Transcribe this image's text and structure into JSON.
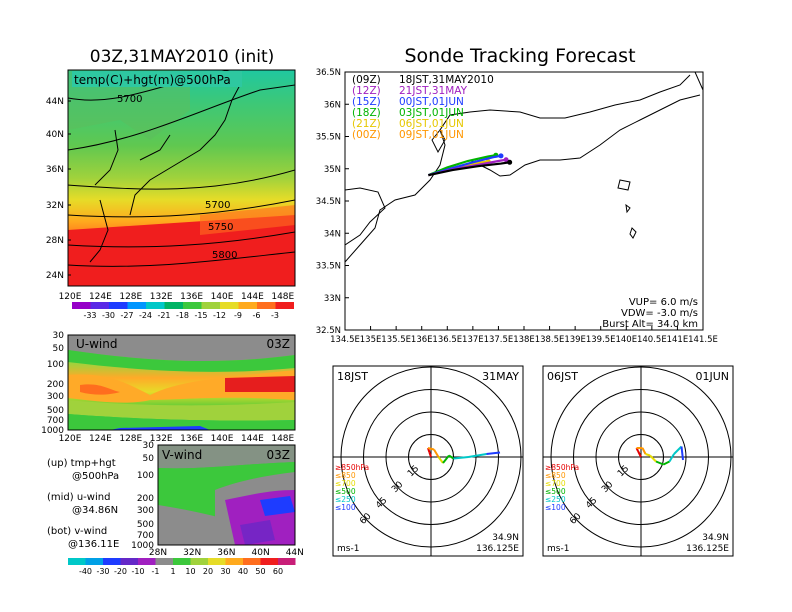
{
  "header": {
    "left_title": "03Z,31MAY2010 (init)",
    "right_title": "Sonde Tracking Forecast"
  },
  "top_left_map": {
    "label": "temp(C)+hgt(m)@500hPa",
    "contours": [
      "5700",
      "5700",
      "5750",
      "5800"
    ],
    "lat_ticks": [
      "44N",
      "40N",
      "36N",
      "32N",
      "28N",
      "24N"
    ],
    "lon_ticks": [
      "120E",
      "124E",
      "128E",
      "132E",
      "136E",
      "140E",
      "144E",
      "148E"
    ],
    "colorbar_labels": [
      "-33",
      "-30",
      "-27",
      "-24",
      "-21",
      "-18",
      "-15",
      "-12",
      "-9",
      "-6",
      "-3"
    ]
  },
  "u_wind": {
    "label": "U-wind",
    "time": "03Z",
    "y_ticks": [
      "30",
      "50",
      "100",
      "200",
      "300",
      "500",
      "700",
      "1000"
    ],
    "x_ticks": [
      "120E",
      "124E",
      "128E",
      "132E",
      "136E",
      "140E",
      "144E",
      "148E"
    ]
  },
  "v_wind": {
    "label": "V-wind",
    "time": "03Z",
    "y_ticks": [
      "30",
      "50",
      "100",
      "200",
      "300",
      "500",
      "700",
      "1000"
    ],
    "x_ticks": [
      "28N",
      "32N",
      "36N",
      "40N",
      "44N"
    ],
    "colorbar_labels": [
      "-40",
      "-30",
      "-20",
      "-10",
      "-1",
      "1",
      "10",
      "20",
      "30",
      "40",
      "50",
      "60"
    ]
  },
  "notes": [
    {
      "l1": "(up) tmp+hgt",
      "l2": "@500hPa"
    },
    {
      "l1": "(mid) u-wind",
      "l2": "@34.86N"
    },
    {
      "l1": "(bot) v-wind",
      "l2": "@136.11E"
    }
  ],
  "track_map": {
    "lat_ticks": [
      "36.5N",
      "36N",
      "35.5N",
      "35N",
      "34.5N",
      "34N",
      "33.5N",
      "33N",
      "32.5N"
    ],
    "lon_ticks": [
      "134.5E",
      "135E",
      "135.5E",
      "136E",
      "136.5E",
      "137E",
      "137.5E",
      "138E",
      "138.5E",
      "139E",
      "139.5E",
      "140E",
      "140.5E",
      "141E",
      "141.5E"
    ],
    "legend": [
      {
        "code": "(09Z)",
        "time": "18JST,31MAY2010",
        "color": "#000000"
      },
      {
        "code": "(12Z)",
        "time": "21JST,31MAY",
        "color": "#a020c0"
      },
      {
        "code": "(15Z)",
        "time": "00JST,01JUN",
        "color": "#1e3cff"
      },
      {
        "code": "(18Z)",
        "time": "03JST,01JUN",
        "color": "#00b400"
      },
      {
        "code": "(21Z)",
        "time": "06JST,01JUN",
        "color": "#e6c800"
      },
      {
        "code": "(00Z)",
        "time": "09JST,01JUN",
        "color": "#ff9600"
      }
    ],
    "params": [
      "VUP=  6.0  m/s",
      "VDW= -3.0  m/s",
      "Burst Alt=  34.0  km"
    ]
  },
  "hodographs": [
    {
      "time_label": "18JST",
      "date_label": "31MAY",
      "unit": "ms-1",
      "lat": "34.9N",
      "lon": "136.125E"
    },
    {
      "time_label": "06JST",
      "date_label": "01JUN",
      "unit": "ms-1",
      "lat": "34.9N",
      "lon": "136.125E"
    }
  ],
  "hodo_rings": [
    "15",
    "30",
    "45",
    "60"
  ],
  "hodo_legend": [
    {
      "text": "≥850hPa",
      "color": "#e60000"
    },
    {
      "text": "≤850",
      "color": "#ff9600"
    },
    {
      "text": "≤700",
      "color": "#e6dc00"
    },
    {
      "text": "≤500",
      "color": "#00b400"
    },
    {
      "text": "≤250",
      "color": "#00c8c8"
    },
    {
      "text": "≤100",
      "color": "#1e3cff"
    }
  ],
  "chart_data": [
    {
      "type": "heatmap",
      "title": "temp(C)+hgt(m)@500hPa",
      "xlim": [
        "120E",
        "150E"
      ],
      "ylim": [
        "22N",
        "48N"
      ],
      "contour_levels": [
        5700,
        5750,
        5800
      ],
      "color_levels": [
        -33,
        -30,
        -27,
        -24,
        -21,
        -18,
        -15,
        -12,
        -9,
        -6,
        -3
      ]
    },
    {
      "type": "heatmap",
      "title": "U-wind",
      "xlim": [
        "120E",
        "150E"
      ],
      "y_levels_hPa": [
        30,
        50,
        100,
        200,
        300,
        500,
        700,
        1000
      ]
    },
    {
      "type": "heatmap",
      "title": "V-wind",
      "xlim": [
        "28N",
        "44N"
      ],
      "y_levels_hPa": [
        30,
        50,
        100,
        200,
        300,
        500,
        700,
        1000
      ],
      "color_levels": [
        -40,
        -30,
        -20,
        -10,
        -1,
        1,
        10,
        20,
        30,
        40,
        50,
        60
      ]
    },
    {
      "type": "line",
      "title": "Sonde Tracking Forecast",
      "xlim": [
        134.5,
        141.5
      ],
      "ylim": [
        32.5,
        36.5
      ],
      "series": [
        {
          "name": "(09Z)",
          "color": "#000000",
          "x": [
            136.13,
            136.6,
            137.1,
            137.55,
            137.72
          ],
          "y": [
            34.9,
            34.98,
            35.04,
            35.08,
            35.1
          ]
        },
        {
          "name": "(12Z)",
          "color": "#a020c0",
          "x": [
            136.13,
            136.6,
            137.1,
            137.5,
            137.65
          ],
          "y": [
            34.9,
            34.99,
            35.06,
            35.12,
            35.14
          ]
        },
        {
          "name": "(15Z)",
          "color": "#1e3cff",
          "x": [
            136.13,
            136.55,
            137.0,
            137.4,
            137.55
          ],
          "y": [
            34.9,
            35.0,
            35.1,
            35.18,
            35.2
          ]
        },
        {
          "name": "(18Z)",
          "color": "#00b400",
          "x": [
            136.13,
            136.5,
            136.9,
            137.3,
            137.45
          ],
          "y": [
            34.9,
            35.02,
            35.12,
            35.19,
            35.21
          ]
        },
        {
          "name": "(21Z)",
          "color": "#e6c800",
          "x": [
            136.13,
            136.45,
            136.8,
            137.15,
            137.3
          ],
          "y": [
            34.9,
            34.98,
            35.05,
            35.1,
            35.11
          ]
        },
        {
          "name": "(00Z)",
          "color": "#ff9600",
          "x": [
            136.13,
            136.4,
            136.7,
            137.0,
            137.2
          ],
          "y": [
            34.9,
            34.96,
            35.02,
            35.06,
            35.08
          ]
        }
      ]
    },
    {
      "type": "scatter",
      "title": "hodograph 18JST 31MAY",
      "unit": "ms-1",
      "ring_values": [
        15,
        30,
        45,
        60
      ],
      "points_u_v": [
        [
          0,
          0
        ],
        [
          -1,
          3
        ],
        [
          -2,
          6
        ],
        [
          2,
          5
        ],
        [
          5,
          0
        ],
        [
          8,
          -4
        ],
        [
          12,
          1
        ],
        [
          15,
          -1
        ],
        [
          25,
          0
        ],
        [
          37,
          2
        ],
        [
          46,
          3
        ]
      ]
    },
    {
      "type": "scatter",
      "title": "hodograph 06JST 01JUN",
      "unit": "ms-1",
      "ring_values": [
        15,
        30,
        45,
        60
      ],
      "points_u_v": [
        [
          0,
          0
        ],
        [
          -2,
          4
        ],
        [
          -3,
          6
        ],
        [
          1,
          6
        ],
        [
          3,
          2
        ],
        [
          6,
          1
        ],
        [
          10,
          -3
        ],
        [
          15,
          -5
        ],
        [
          19,
          -3
        ],
        [
          22,
          2
        ],
        [
          27,
          7
        ],
        [
          28,
          -2
        ]
      ]
    }
  ]
}
